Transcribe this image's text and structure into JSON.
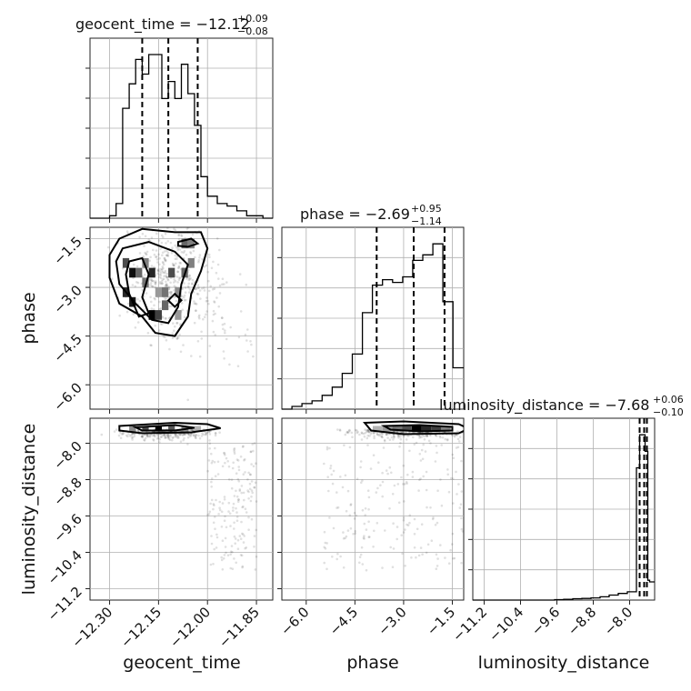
{
  "chart_data": {
    "type": "corner",
    "parameters": [
      {
        "name": "geocent_time",
        "axis_label": "geocent_time",
        "range": [
          -12.36,
          -11.8
        ],
        "ticks": [
          -12.3,
          -12.15,
          -12.0,
          -11.85
        ],
        "tick_labels": [
          "−12.30",
          "−12.15",
          "−12.00",
          "−11.85"
        ],
        "title_prefix": "geocent_time = ",
        "title_value": "−12.12",
        "title_plus": "+0.09",
        "title_minus": "−0.08",
        "quantiles": [
          -12.2,
          -12.12,
          -12.03
        ],
        "hist_bins": [
          -12.36,
          -12.33,
          -12.3,
          -12.28,
          -12.26,
          -12.24,
          -12.22,
          -12.2,
          -12.18,
          -12.16,
          -12.14,
          -12.12,
          -12.1,
          -12.08,
          -12.06,
          -12.04,
          -12.02,
          -12.0,
          -11.97,
          -11.94,
          -11.91,
          -11.88,
          -11.86,
          -11.83,
          -11.8
        ],
        "hist_counts": [
          0,
          0,
          1,
          6,
          45,
          55,
          65,
          59,
          67,
          67,
          49,
          56,
          49,
          63,
          51,
          38,
          17,
          9,
          6,
          5,
          3,
          1,
          1,
          0
        ]
      },
      {
        "name": "phase",
        "axis_label": "phase",
        "range": [
          -6.75,
          -1.15
        ],
        "ticks": [
          -6.0,
          -4.5,
          -3.0,
          -1.5
        ],
        "tick_labels": [
          "−6.0",
          "−4.5",
          "−3.0",
          "−1.5"
        ],
        "title_prefix": "phase = ",
        "title_value": "−2.69",
        "title_plus": "+0.95",
        "title_minus": "−1.14",
        "quantiles": [
          -3.83,
          -2.69,
          -1.74
        ],
        "hist_bins": [
          -6.75,
          -6.44,
          -6.13,
          -5.82,
          -5.51,
          -5.2,
          -4.89,
          -4.58,
          -4.27,
          -3.96,
          -3.65,
          -3.34,
          -3.03,
          -2.72,
          -2.41,
          -2.1,
          -1.79,
          -1.48,
          -1.15
        ],
        "hist_counts": [
          0,
          1,
          2,
          3,
          5,
          8,
          13,
          20,
          35,
          45,
          47,
          46,
          48,
          54,
          56,
          60,
          39,
          15
        ]
      },
      {
        "name": "luminosity_distance",
        "axis_label": "luminosity_distance",
        "range": [
          -11.45,
          -7.45
        ],
        "ticks": [
          -11.2,
          -10.4,
          -9.6,
          -8.8,
          -8.0
        ],
        "tick_labels": [
          "−11.2",
          "−10.4",
          "−9.6",
          "−8.8",
          "−8.0"
        ],
        "title_prefix": "luminosity_distance = ",
        "title_value": "−7.68",
        "title_plus": "+0.06",
        "title_minus": "−0.10",
        "quantiles": [
          -7.78,
          -7.68,
          -7.62
        ],
        "hist_bins": [
          -11.45,
          -11.25,
          -11.05,
          -10.85,
          -10.65,
          -10.45,
          -10.25,
          -10.05,
          -9.85,
          -9.65,
          -9.45,
          -9.25,
          -9.05,
          -8.85,
          -8.65,
          -8.45,
          -8.25,
          -8.05,
          -7.85,
          -7.78,
          -7.72,
          -7.66,
          -7.6,
          -7.56,
          -7.45
        ],
        "hist_counts": [
          0,
          0,
          0,
          0,
          0,
          0,
          0,
          0,
          0,
          0.3,
          0.5,
          0.8,
          1,
          1.3,
          2,
          3,
          4,
          5,
          80,
          100,
          100,
          90,
          12,
          11
        ]
      }
    ],
    "pairs": [
      {
        "x": "geocent_time",
        "y": "phase",
        "heat_cells": [
          {
            "x": -12.25,
            "y": -2.25,
            "v": 0.7
          },
          {
            "x": -12.23,
            "y": -2.55,
            "v": 0.95
          },
          {
            "x": -12.21,
            "y": -2.55,
            "v": 0.6
          },
          {
            "x": -12.25,
            "y": -3.15,
            "v": 0.85
          },
          {
            "x": -12.23,
            "y": -3.45,
            "v": 0.9
          },
          {
            "x": -12.17,
            "y": -3.85,
            "v": 1.0
          },
          {
            "x": -12.15,
            "y": -3.85,
            "v": 0.75
          },
          {
            "x": -12.13,
            "y": -3.55,
            "v": 0.6
          },
          {
            "x": -12.17,
            "y": -2.55,
            "v": 0.85
          },
          {
            "x": -12.11,
            "y": -2.55,
            "v": 0.7
          },
          {
            "x": -12.07,
            "y": -2.55,
            "v": 0.6
          },
          {
            "x": -12.05,
            "y": -2.25,
            "v": 0.5
          },
          {
            "x": -12.13,
            "y": -3.15,
            "v": 0.55
          },
          {
            "x": -12.19,
            "y": -2.25,
            "v": 0.5
          },
          {
            "x": -12.19,
            "y": -2.85,
            "v": 0.55
          },
          {
            "x": -12.09,
            "y": -3.15,
            "v": 0.45
          },
          {
            "x": -12.07,
            "y": -1.65,
            "v": 0.6
          },
          {
            "x": -12.05,
            "y": -1.65,
            "v": 0.5
          },
          {
            "x": -12.09,
            "y": -3.85,
            "v": 0.4
          },
          {
            "x": -12.15,
            "y": -3.15,
            "v": 0.4
          }
        ]
      },
      {
        "x": "geocent_time",
        "y": "luminosity_distance",
        "heat_cells": [
          {
            "x": -12.15,
            "y": -7.68,
            "v": 1.0
          },
          {
            "x": -12.19,
            "y": -7.68,
            "v": 0.7
          },
          {
            "x": -12.11,
            "y": -7.68,
            "v": 0.65
          },
          {
            "x": -12.23,
            "y": -7.68,
            "v": 0.45
          },
          {
            "x": -12.07,
            "y": -7.68,
            "v": 0.45
          },
          {
            "x": -12.03,
            "y": -7.68,
            "v": 0.3
          }
        ]
      },
      {
        "x": "phase",
        "y": "luminosity_distance",
        "heat_cells": [
          {
            "x": -2.6,
            "y": -7.68,
            "v": 1.0
          },
          {
            "x": -2.3,
            "y": -7.68,
            "v": 0.85
          },
          {
            "x": -2.0,
            "y": -7.68,
            "v": 0.75
          },
          {
            "x": -2.9,
            "y": -7.68,
            "v": 0.7
          },
          {
            "x": -3.2,
            "y": -7.68,
            "v": 0.55
          },
          {
            "x": -3.5,
            "y": -7.68,
            "v": 0.4
          },
          {
            "x": -1.7,
            "y": -7.68,
            "v": 0.5
          },
          {
            "x": -3.8,
            "y": -7.68,
            "v": 0.3
          }
        ]
      }
    ],
    "grid": true
  }
}
